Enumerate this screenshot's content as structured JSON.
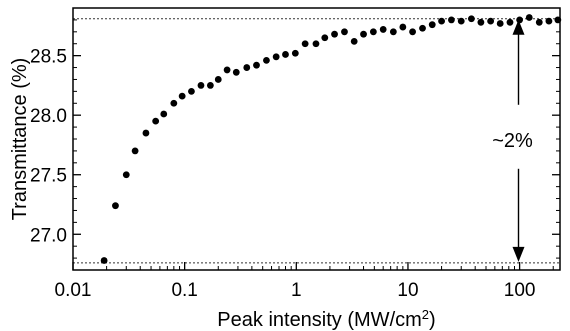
{
  "chart_data": {
    "type": "scatter",
    "xlabel": "Peak intensity (MW/cm",
    "xlabel_sup": "2",
    "xlabel_end": ")",
    "ylabel": "Transmittance (%)",
    "x_scale": "log",
    "xlim": [
      0.01,
      230
    ],
    "ylim": [
      26.7,
      28.9
    ],
    "xticks": [
      {
        "value": 0.01,
        "label": "0.01"
      },
      {
        "value": 0.1,
        "label": "0.1"
      },
      {
        "value": 1,
        "label": "1"
      },
      {
        "value": 10,
        "label": "10"
      },
      {
        "value": 100,
        "label": "100"
      }
    ],
    "yticks": [
      {
        "value": 27.0,
        "label": "27.0"
      },
      {
        "value": 27.5,
        "label": "27.5"
      },
      {
        "value": 28.0,
        "label": "28.0"
      },
      {
        "value": 28.5,
        "label": "28.5"
      }
    ],
    "reference_lines": [
      28.81,
      26.76
    ],
    "annotation": {
      "text": "~2%",
      "x": 90,
      "y_top": 28.81,
      "y_bottom": 26.76
    },
    "series": [
      {
        "x": [
          0.019,
          0.024,
          0.03,
          0.036,
          0.045,
          0.055,
          0.065,
          0.08,
          0.095,
          0.115,
          0.14,
          0.17,
          0.2,
          0.24,
          0.29,
          0.36,
          0.44,
          0.54,
          0.66,
          0.8,
          0.98,
          1.2,
          1.5,
          1.8,
          2.2,
          2.7,
          3.3,
          4.0,
          4.9,
          6.0,
          7.4,
          9.0,
          11,
          13.5,
          16.5,
          20,
          24.5,
          30,
          37,
          45,
          55,
          67,
          82,
          100,
          122,
          150,
          183,
          220
        ],
        "y": [
          26.78,
          27.24,
          27.5,
          27.7,
          27.85,
          27.95,
          28.01,
          28.1,
          28.16,
          28.2,
          28.25,
          28.25,
          28.3,
          28.38,
          28.36,
          28.4,
          28.42,
          28.46,
          28.49,
          28.51,
          28.52,
          28.6,
          28.6,
          28.65,
          28.68,
          28.7,
          28.62,
          28.68,
          28.7,
          28.72,
          28.7,
          28.74,
          28.7,
          28.73,
          28.76,
          28.79,
          28.8,
          28.79,
          28.81,
          28.78,
          28.79,
          28.77,
          28.78,
          28.8,
          28.82,
          28.78,
          28.79,
          28.8
        ]
      }
    ]
  }
}
